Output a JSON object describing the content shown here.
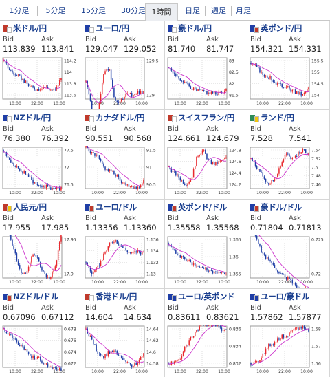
{
  "tabs": [
    {
      "label": "1分足",
      "active": false
    },
    {
      "label": "5分足",
      "active": false
    },
    {
      "label": "15分足",
      "active": false
    },
    {
      "label": "30分足",
      "active": false
    },
    {
      "label": "1時間足",
      "active": true
    },
    {
      "label": "日足",
      "active": false
    },
    {
      "label": "週足",
      "active": false
    },
    {
      "label": "月足",
      "active": false
    }
  ],
  "labels": {
    "bid": "Bid",
    "ask": "Ask"
  },
  "time_ticks": [
    "10:00",
    "22:00",
    "10:00"
  ],
  "colors": {
    "up": "#e8282d",
    "down": "#1f3ea6",
    "ma": "#cc33cc",
    "link": "#1a3f8f"
  },
  "pairs": [
    {
      "name": "米ドル/円",
      "flags": [
        "#c0392b",
        "#ffffff"
      ],
      "bid": "113.839",
      "ask": "113.841",
      "ticks": [
        "114.2",
        "114",
        "113.8",
        "113.6"
      ],
      "trend": [
        114.2,
        114.05,
        113.95,
        113.9,
        113.8,
        113.72,
        113.7,
        113.75,
        113.7,
        113.68,
        113.9
      ]
    },
    {
      "name": "ユーロ/円",
      "flags": [
        "#1f3ea6",
        "#ffffff"
      ],
      "bid": "129.047",
      "ask": "129.052",
      "ticks": [
        "129.5",
        "129"
      ],
      "trend": [
        129.2,
        128.8,
        128.7,
        129.3,
        129.4,
        128.9,
        128.9,
        129.0,
        129.0,
        129.05,
        129.05
      ]
    },
    {
      "name": "豪ドル/円",
      "flags": [
        "#1f3ea6",
        "#ffffff"
      ],
      "bid": "81.740",
      "ask": "81.747",
      "ticks": [
        "83",
        "82.5",
        "82",
        "81.5"
      ],
      "trend": [
        82.7,
        82.4,
        82.2,
        82.0,
        81.8,
        81.7,
        81.65,
        81.6,
        81.55,
        81.6,
        81.75
      ]
    },
    {
      "name": "英ポンド/円",
      "flags": [
        "#1f3ea6",
        "#c0392b"
      ],
      "bid": "154.321",
      "ask": "154.331",
      "ticks": [
        "155.5",
        "155",
        "154.5",
        "154"
      ],
      "trend": [
        155.4,
        155.2,
        154.9,
        154.8,
        154.6,
        154.4,
        154.4,
        154.2,
        154.1,
        154.0,
        154.3
      ]
    },
    {
      "name": "NZドル/円",
      "flags": [
        "#1f3ea6",
        "#ffffff"
      ],
      "bid": "76.380",
      "ask": "76.392",
      "ticks": [
        "77.5",
        "77",
        "76.5"
      ],
      "trend": [
        77.5,
        77.2,
        77.0,
        76.9,
        76.8,
        76.6,
        76.5,
        76.45,
        76.4,
        76.35,
        76.4
      ]
    },
    {
      "name": "カナダドル/円",
      "flags": [
        "#c0392b",
        "#ffffff"
      ],
      "bid": "90.551",
      "ask": "90.568",
      "ticks": [
        "91.5",
        "91",
        "90.5"
      ],
      "trend": [
        91.6,
        91.4,
        91.3,
        91.0,
        90.9,
        90.8,
        90.6,
        90.5,
        90.45,
        90.4,
        90.6
      ]
    },
    {
      "name": "スイスフラン/円",
      "flags": [
        "#c0392b",
        "#ffffff"
      ],
      "bid": "124.661",
      "ask": "124.679",
      "ticks": [
        "124.8",
        "124.6",
        "124.4",
        "124.2"
      ],
      "trend": [
        124.5,
        124.4,
        124.3,
        124.2,
        124.3,
        124.7,
        124.8,
        124.6,
        124.55,
        124.6,
        124.65
      ]
    },
    {
      "name": "ランド/円",
      "flags": [
        "#2e8b57",
        "#f1c40f"
      ],
      "bid": "7.528",
      "ask": "7.541",
      "ticks": [
        "7.54",
        "7.52",
        "7.5",
        "7.48",
        "7.46"
      ],
      "trend": [
        7.52,
        7.5,
        7.48,
        7.46,
        7.47,
        7.5,
        7.53,
        7.52,
        7.53,
        7.54,
        7.53
      ]
    },
    {
      "name": "人民元/円",
      "flags": [
        "#c0392b",
        "#f1c40f"
      ],
      "bid": "17.955",
      "ask": "17.985",
      "ticks": [
        "17.95",
        "17.9"
      ],
      "trend": [
        17.98,
        17.96,
        17.93,
        17.9,
        17.9,
        17.93,
        17.92,
        17.9,
        17.89,
        17.91,
        17.96
      ]
    },
    {
      "name": "ユーロ/ドル",
      "flags": [
        "#1f3ea6",
        "#c0392b"
      ],
      "bid": "1.13356",
      "ask": "1.13360",
      "ticks": [
        "1.136",
        "1.134",
        "1.132",
        "1.13"
      ],
      "trend": [
        1.132,
        1.13,
        1.131,
        1.133,
        1.135,
        1.136,
        1.135,
        1.134,
        1.1335,
        1.134,
        1.1335
      ]
    },
    {
      "name": "英ポンド/ドル",
      "flags": [
        "#1f3ea6",
        "#c0392b"
      ],
      "bid": "1.35558",
      "ask": "1.35568",
      "ticks": [
        "1.365",
        "1.36",
        "1.355"
      ],
      "trend": [
        1.364,
        1.362,
        1.36,
        1.359,
        1.358,
        1.357,
        1.357,
        1.356,
        1.3555,
        1.355,
        1.3556
      ]
    },
    {
      "name": "豪ドル/ドル",
      "flags": [
        "#1f3ea6",
        "#c0392b"
      ],
      "bid": "0.71804",
      "ask": "0.71813",
      "ticks": [
        "0.725",
        "0.72"
      ],
      "trend": [
        0.727,
        0.725,
        0.723,
        0.722,
        0.721,
        0.72,
        0.7195,
        0.719,
        0.718,
        0.7175,
        0.718
      ]
    },
    {
      "name": "NZドル/ドル",
      "flags": [
        "#1f3ea6",
        "#c0392b"
      ],
      "bid": "0.67096",
      "ask": "0.67112",
      "ticks": [
        "0.678",
        "0.676",
        "0.674",
        "0.672"
      ],
      "trend": [
        0.678,
        0.677,
        0.676,
        0.675,
        0.674,
        0.673,
        0.673,
        0.672,
        0.6715,
        0.671,
        0.671
      ]
    },
    {
      "name": "香港ドル/円",
      "flags": [
        "#c0392b",
        "#ffffff"
      ],
      "bid": "14.604",
      "ask": "14.634",
      "ticks": [
        "14.64",
        "14.62",
        "14.6",
        "14.58"
      ],
      "trend": [
        14.64,
        14.62,
        14.6,
        14.59,
        14.6,
        14.6,
        14.59,
        14.58,
        14.575,
        14.58,
        14.6
      ]
    },
    {
      "name": "ユーロ/英ポンド",
      "flags": [
        "#1f3ea6",
        "#1f3ea6"
      ],
      "bid": "0.83611",
      "ask": "0.83621",
      "ticks": [
        "0.836",
        "0.834",
        "0.832"
      ],
      "trend": [
        0.832,
        0.832,
        0.8325,
        0.834,
        0.835,
        0.836,
        0.8365,
        0.8365,
        0.8365,
        0.836,
        0.836
      ]
    },
    {
      "name": "ユーロ/豪ドル",
      "flags": [
        "#1f3ea6",
        "#1f3ea6"
      ],
      "bid": "1.57862",
      "ask": "1.57877",
      "ticks": [
        "1.58",
        "1.57",
        "1.56"
      ],
      "trend": [
        1.56,
        1.56,
        1.565,
        1.57,
        1.572,
        1.575,
        1.576,
        1.578,
        1.58,
        1.581,
        1.579
      ]
    }
  ]
}
